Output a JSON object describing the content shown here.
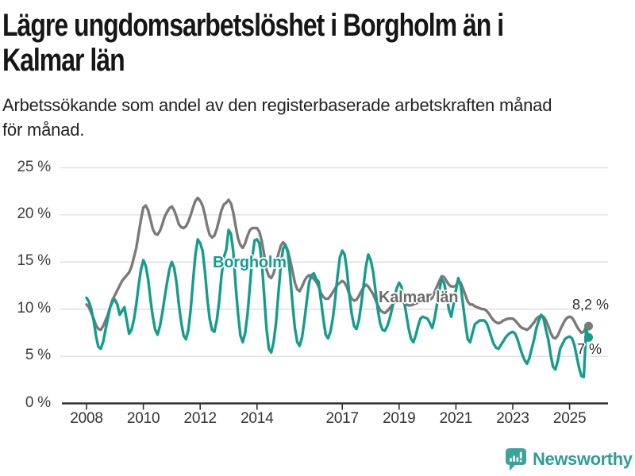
{
  "header": {
    "title_lines": [
      "Lägre ungdomsarbetslöshet i Borgholm än i",
      "Kalmar län"
    ],
    "subtitle_lines": [
      "Arbetssökande som andel av den registerbaserade arbetskraften månad",
      "för månad."
    ]
  },
  "footer": {
    "brand": "Newsworthy",
    "brand_color": "#2f9e97",
    "icon_color": "#3ba39c"
  },
  "chart_data": {
    "type": "line",
    "title": "Lägre ungdomsarbetslöshet i Borgholm än i Kalmar län",
    "subtitle": "Arbetssökande som andel av den registerbaserade arbetskraften månad för månad.",
    "unit": "%",
    "frequency": "monthly",
    "x_start": "2008-01",
    "x_end": "2025-09",
    "ylim": [
      0,
      25
    ],
    "grid": "horizontal",
    "y_ticks": [
      0,
      5,
      10,
      15,
      20,
      25
    ],
    "y_tick_labels": [
      "0 %",
      "5 %",
      "10 %",
      "15 %",
      "20 %",
      "25 %"
    ],
    "x_tick_years": [
      2008,
      2010,
      2012,
      2014,
      2017,
      2019,
      2021,
      2023,
      2025
    ],
    "x_tick_labels": [
      "2008",
      "2010",
      "2012",
      "2014",
      "2017",
      "2019",
      "2021",
      "2023",
      "2025"
    ],
    "legend_position": "inline-labels",
    "series": [
      {
        "name": "Kalmar län",
        "color": "#7a7a7a",
        "label_color": "#6b6b6b",
        "end_label": "8,2 %",
        "end_value": 8.2,
        "values": [
          10.5,
          10.2,
          9.6,
          9.0,
          8.3,
          7.9,
          7.8,
          8.2,
          8.8,
          9.4,
          10.2,
          11.0,
          11.5,
          12.0,
          12.5,
          13.0,
          13.3,
          13.6,
          13.9,
          14.5,
          15.5,
          16.5,
          18.0,
          19.5,
          20.8,
          21.0,
          20.5,
          19.5,
          18.5,
          18.0,
          17.9,
          18.3,
          19.0,
          19.8,
          20.3,
          20.7,
          20.9,
          20.5,
          19.8,
          19.0,
          18.7,
          18.6,
          18.8,
          19.3,
          20.0,
          20.8,
          21.5,
          21.8,
          21.5,
          21.0,
          20.0,
          18.8,
          17.9,
          17.6,
          17.8,
          18.5,
          19.5,
          20.5,
          21.1,
          21.3,
          21.6,
          21.2,
          20.2,
          18.8,
          17.5,
          16.8,
          16.5,
          17.0,
          17.8,
          18.4,
          18.6,
          18.6,
          18.6,
          18.2,
          17.2,
          15.8,
          14.2,
          13.5,
          13.3,
          13.8,
          14.8,
          15.8,
          16.7,
          17.1,
          16.8,
          16.2,
          15.2,
          14.0,
          12.8,
          12.1,
          11.9,
          12.4,
          13.0,
          13.4,
          13.6,
          13.5,
          13.2,
          12.9,
          12.4,
          11.7,
          11.3,
          11.1,
          11.1,
          11.4,
          11.8,
          12.2,
          12.6,
          12.8,
          13.0,
          12.8,
          12.3,
          11.6,
          11.1,
          10.9,
          11.0,
          11.4,
          11.9,
          12.3,
          12.6,
          12.4,
          12.0,
          11.6,
          11.0,
          10.4,
          9.9,
          9.7,
          9.6,
          9.8,
          10.1,
          10.4,
          10.7,
          10.9,
          11.0,
          10.9,
          10.7,
          10.5,
          10.4,
          10.4,
          10.5,
          10.6,
          10.7,
          10.8,
          10.9,
          11.0,
          11.0,
          11.0,
          11.2,
          11.8,
          12.4,
          13.0,
          13.5,
          13.4,
          13.0,
          12.6,
          12.4,
          12.4,
          12.5,
          13.0,
          12.8,
          12.2,
          11.5,
          10.8,
          10.5,
          10.5,
          10.3,
          10.2,
          10.1,
          10.0,
          10.0,
          9.8,
          9.5,
          9.1,
          8.8,
          8.6,
          8.5,
          8.6,
          8.8,
          8.9,
          9.0,
          9.0,
          9.0,
          8.8,
          8.5,
          8.2,
          8.0,
          7.9,
          7.8,
          8.0,
          8.3,
          8.6,
          9.0,
          9.2,
          9.3,
          9.2,
          8.8,
          8.2,
          7.5,
          7.0,
          6.9,
          7.2,
          7.8,
          8.3,
          8.8,
          9.1,
          9.2,
          9.1,
          8.7,
          8.2,
          7.8,
          7.5,
          7.6,
          8.1,
          8.2
        ]
      },
      {
        "name": "Borgholm",
        "color": "#169c8c",
        "label_color": "#169c8c",
        "end_label": "7 %",
        "end_value": 7.0,
        "values": [
          11.2,
          10.8,
          10.0,
          8.8,
          7.2,
          6.0,
          5.8,
          6.5,
          7.8,
          9.0,
          10.2,
          10.8,
          11.0,
          10.5,
          9.4,
          9.8,
          10.2,
          8.8,
          7.4,
          7.8,
          8.9,
          10.5,
          12.5,
          14.2,
          15.2,
          14.6,
          13.2,
          11.0,
          9.2,
          7.8,
          7.3,
          8.2,
          9.6,
          11.2,
          12.8,
          14.2,
          15.0,
          14.4,
          12.8,
          10.5,
          8.6,
          7.2,
          6.8,
          7.8,
          10.0,
          13.0,
          15.8,
          17.4,
          17.0,
          16.2,
          14.0,
          11.2,
          9.0,
          7.8,
          7.6,
          8.8,
          10.8,
          13.5,
          15.5,
          16.3,
          18.4,
          18.0,
          16.0,
          12.5,
          9.5,
          7.2,
          6.5,
          7.5,
          9.5,
          12.5,
          15.5,
          17.3,
          17.4,
          17.0,
          15.0,
          11.5,
          8.0,
          5.8,
          5.4,
          6.5,
          8.5,
          11.5,
          14.5,
          16.4,
          16.8,
          16.0,
          13.5,
          10.5,
          8.0,
          6.5,
          6.1,
          7.0,
          8.8,
          10.8,
          12.8,
          13.6,
          13.8,
          13.2,
          12.9,
          11.0,
          9.0,
          7.3,
          6.9,
          7.6,
          9.0,
          11.0,
          13.5,
          15.5,
          16.2,
          15.8,
          14.0,
          11.5,
          9.5,
          8.2,
          7.9,
          8.8,
          10.5,
          12.5,
          14.5,
          15.8,
          15.2,
          14.0,
          12.0,
          10.0,
          8.5,
          7.8,
          7.7,
          8.2,
          9.0,
          10.0,
          11.2,
          12.2,
          12.8,
          12.4,
          11.0,
          9.5,
          8.0,
          6.9,
          6.5,
          7.2,
          8.2,
          9.0,
          9.2,
          9.1,
          9.0,
          8.5,
          8.0,
          9.0,
          10.5,
          12.0,
          13.2,
          12.8,
          11.5,
          10.0,
          9.2,
          10.5,
          12.0,
          13.3,
          12.5,
          10.5,
          8.5,
          6.8,
          6.5,
          7.5,
          8.4,
          8.6,
          8.8,
          8.8,
          8.8,
          8.5,
          7.8,
          7.0,
          6.3,
          5.9,
          5.8,
          6.2,
          6.6,
          7.0,
          7.3,
          7.5,
          7.6,
          7.4,
          6.8,
          6.0,
          5.2,
          4.6,
          4.2,
          4.8,
          5.8,
          6.8,
          8.0,
          8.8,
          9.4,
          9.0,
          7.8,
          6.8,
          5.2,
          3.9,
          3.6,
          4.5,
          5.8,
          6.3,
          6.8,
          7.0,
          7.1,
          6.9,
          6.2,
          5.0,
          3.8,
          2.9,
          2.8,
          7.9,
          7.0
        ]
      }
    ]
  }
}
